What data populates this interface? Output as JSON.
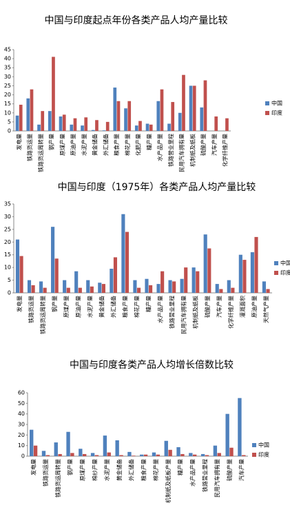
{
  "chart_data": [
    {
      "type": "bar",
      "title": "中国与印度起点年份各类产品人均产量比较",
      "categories": [
        "发电量",
        "铁路货运量",
        "铁路货运周转量",
        "钢产量",
        "原煤产量",
        "原油产量",
        "水泥产量",
        "黄金储备",
        "外汇储备",
        "粮食产量",
        "棉花产量",
        "化肥产量",
        "糖产量",
        "水产品产量",
        "铁路营业里程",
        "民用汽车拥有量",
        "机制纸及纸板",
        "硫酸产量",
        "汽车产量",
        "化学纤维产量"
      ],
      "series": [
        {
          "name": "中国",
          "color": "#4f81bd",
          "values": [
            8.5,
            18,
            3.5,
            11,
            8,
            3.5,
            3,
            0.5,
            0.3,
            24,
            12.5,
            3,
            4,
            16.5,
            4,
            10,
            25,
            13,
            0,
            0
          ]
        },
        {
          "name": "印度",
          "color": "#c0504d",
          "values": [
            14.5,
            23,
            11,
            41,
            9,
            7,
            7.5,
            6,
            5,
            16.5,
            16.5,
            5.5,
            3.5,
            23,
            16,
            31,
            25,
            28,
            8,
            7
          ]
        }
      ],
      "ylim": [
        0,
        45
      ],
      "yticks": [
        0,
        5,
        10,
        15,
        20,
        25,
        30,
        35,
        40,
        45
      ]
    },
    {
      "type": "bar",
      "title": "中国与印度（1975年）各类产品人均产量比较",
      "categories": [
        "发电量",
        "铁路货运量",
        "铁路货运周转量",
        "钢产量",
        "原煤产量",
        "原油产量",
        "水泥产量",
        "黄金储备",
        "外汇储备",
        "粮食产量",
        "棉花产量",
        "糖产量",
        "水产品产量",
        "铁路营业里程",
        "民用汽车拥有量",
        "机制纸及纸板",
        "硫酸产量",
        "汽车产量",
        "化学纤维产量",
        "灌溉面积",
        "原油产量",
        "天然气产量"
      ],
      "series": [
        {
          "name": "中国",
          "color": "#4f81bd",
          "values": [
            21,
            5,
            4.5,
            26,
            5,
            8.5,
            5,
            4,
            9.5,
            31,
            5,
            5.5,
            3.5,
            5,
            5.5,
            10,
            23,
            3.5,
            5,
            15,
            16,
            4.5
          ]
        },
        {
          "name": "印度",
          "color": "#c0504d",
          "values": [
            14.5,
            3,
            2,
            13.5,
            2,
            2,
            2.5,
            3.5,
            14,
            24,
            2,
            3,
            8.5,
            4.5,
            10,
            8.5,
            17.5,
            1.5,
            2,
            13,
            22,
            1.5
          ]
        }
      ],
      "ylim": [
        0,
        35
      ],
      "yticks": [
        0,
        5,
        10,
        15,
        20,
        25,
        30,
        35
      ]
    },
    {
      "type": "bar",
      "title": "中国与印度各类产品人均增长倍数比较",
      "categories": [
        "发电量",
        "铁路货运量",
        "铁路货运周转量",
        "钢产量",
        "原煤产量",
        "棉纱产量",
        "水泥产量",
        "黄金储备",
        "外汇储备",
        "粮食产量",
        "棉花产量",
        "机制纸及纸板产量",
        "糖产量",
        "水产品产量",
        "铁路营业里程",
        "民用汽车拥有量",
        "硫酸产量",
        "汽车产量"
      ],
      "series": [
        {
          "name": "中国",
          "color": "#4f81bd",
          "values": [
            25,
            5,
            13,
            23,
            7,
            3,
            19.5,
            15,
            4,
            1.5,
            3.5,
            14.5,
            8.5,
            3,
            2,
            10,
            40,
            55
          ]
        },
        {
          "name": "印度",
          "color": "#c0504d",
          "values": [
            10,
            1,
            2,
            3,
            2,
            1,
            3.5,
            1,
            0.5,
            1.5,
            1.5,
            6,
            2,
            1.5,
            1,
            3,
            8,
            1
          ]
        }
      ],
      "ylim": [
        0,
        60
      ],
      "yticks": [
        0,
        10,
        20,
        30,
        40,
        50,
        60
      ]
    }
  ]
}
